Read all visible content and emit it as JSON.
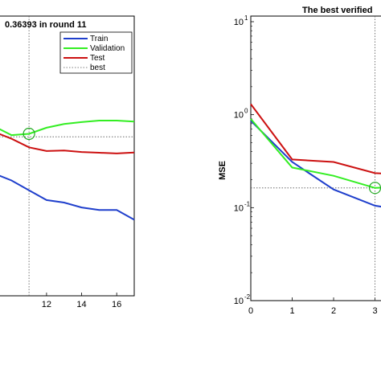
{
  "chart_data": [
    {
      "type": "line",
      "title": "0.36393 in round 11",
      "xlabel": "",
      "ylabel": "",
      "xlim": [
        9.3,
        17
      ],
      "ylim": [
        -0.42,
        0.72
      ],
      "x_ticks": [
        12,
        14,
        16
      ],
      "y_ticks": [],
      "grid": false,
      "legend_position": "top-right",
      "legend": [
        "Train",
        "Validation",
        "Test",
        "best"
      ],
      "series": [
        {
          "name": "Train",
          "color": "#1f3fcc",
          "x": [
            9.3,
            10,
            11,
            12,
            13,
            14,
            15,
            16,
            17
          ],
          "y": [
            0.07,
            0.05,
            0.01,
            -0.03,
            -0.04,
            -0.06,
            -0.07,
            -0.07,
            -0.11
          ]
        },
        {
          "name": "Validation",
          "color": "#33ee22",
          "x": [
            9.3,
            10,
            11,
            12,
            13,
            14,
            15,
            16,
            17
          ],
          "y": [
            0.26,
            0.235,
            0.24,
            0.265,
            0.28,
            0.288,
            0.294,
            0.294,
            0.29
          ]
        },
        {
          "name": "Test",
          "color": "#cc1111",
          "x": [
            9.3,
            10,
            11,
            12,
            13,
            14,
            15,
            16,
            17
          ],
          "y": [
            0.24,
            0.22,
            0.185,
            0.17,
            0.172,
            0.166,
            0.163,
            0.16,
            0.164
          ]
        }
      ],
      "best": {
        "x": 11,
        "y": 0.24
      },
      "best_line_y": 0.228
    },
    {
      "type": "line",
      "title": "The best verified",
      "xlabel": "",
      "ylabel": "MSE",
      "yscale": "log",
      "xlim": [
        0,
        3.3
      ],
      "ylim": [
        0.01,
        10
      ],
      "x_ticks": [
        "0",
        "1",
        "2",
        "3"
      ],
      "y_ticks": [
        {
          "base": "10",
          "exp": "1",
          "value": 10
        },
        {
          "base": "10",
          "exp": "0",
          "value": 1
        },
        {
          "base": "10",
          "exp": "-1",
          "value": 0.1
        },
        {
          "base": "10",
          "exp": "-2",
          "value": 0.01
        }
      ],
      "grid": false,
      "series": [
        {
          "name": "Train",
          "color": "#1f3fcc",
          "x": [
            0,
            1,
            2,
            3,
            3.3
          ],
          "y": [
            0.86,
            0.31,
            0.157,
            0.105,
            0.1
          ]
        },
        {
          "name": "Validation",
          "color": "#33ee22",
          "x": [
            0,
            1,
            2,
            3,
            3.3
          ],
          "y": [
            0.9,
            0.27,
            0.22,
            0.163,
            0.165
          ]
        },
        {
          "name": "Test",
          "color": "#cc1111",
          "x": [
            0,
            1,
            2,
            3,
            3.3
          ],
          "y": [
            1.3,
            0.33,
            0.31,
            0.235,
            0.232
          ]
        }
      ],
      "best": {
        "x": 3,
        "y": 0.163
      }
    }
  ]
}
